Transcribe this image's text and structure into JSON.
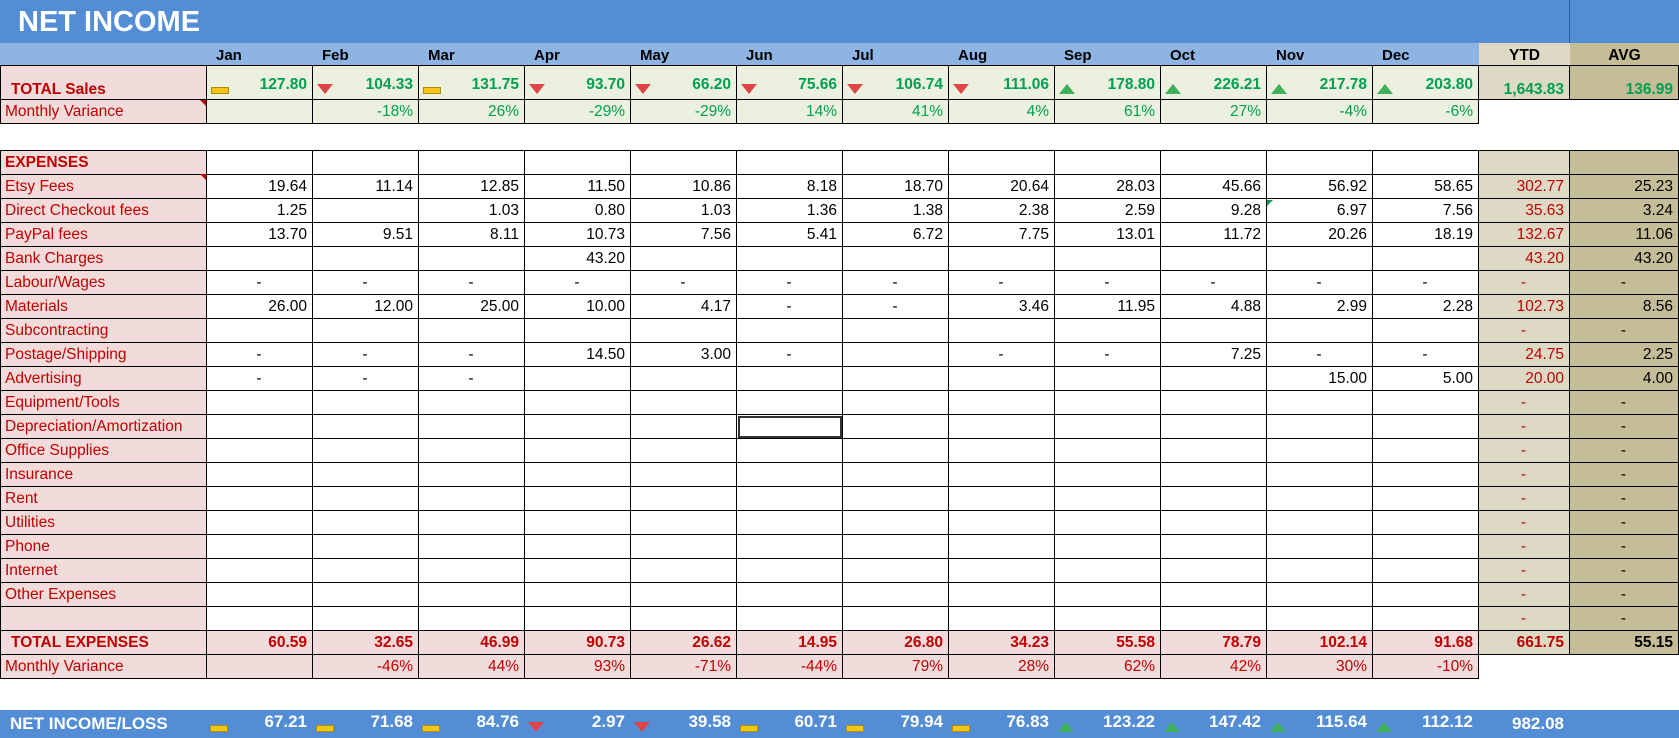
{
  "title": "NET INCOME",
  "months": [
    "Jan",
    "Feb",
    "Mar",
    "Apr",
    "May",
    "Jun",
    "Jul",
    "Aug",
    "Sep",
    "Oct",
    "Nov",
    "Dec"
  ],
  "ytd_label": "YTD",
  "avg_label": "AVG",
  "sales": {
    "label": "TOTAL  Sales",
    "values": [
      "127.80",
      "104.33",
      "131.75",
      "93.70",
      "66.20",
      "75.66",
      "106.74",
      "111.06",
      "178.80",
      "226.21",
      "217.78",
      "203.80"
    ],
    "trend_icons": [
      "flat",
      "down",
      "flat",
      "down",
      "down",
      "down",
      "down",
      "down",
      "up",
      "up",
      "up",
      "up"
    ],
    "ytd": "1,643.83",
    "avg": "136.99"
  },
  "sales_variance": {
    "label": "Monthly Variance",
    "values": [
      "",
      "-18%",
      "26%",
      "-29%",
      "-29%",
      "14%",
      "41%",
      "4%",
      "61%",
      "27%",
      "-4%",
      "-6%"
    ]
  },
  "expenses_header": "EXPENSES",
  "expenses": [
    {
      "label": "Etsy Fees",
      "values": [
        "19.64",
        "11.14",
        "12.85",
        "11.50",
        "10.86",
        "8.18",
        "18.70",
        "20.64",
        "28.03",
        "45.66",
        "56.92",
        "58.65"
      ],
      "ytd": "302.77",
      "avg": "25.23"
    },
    {
      "label": "Direct Checkout fees",
      "values": [
        "1.25",
        "",
        "1.03",
        "0.80",
        "1.03",
        "1.36",
        "1.38",
        "2.38",
        "2.59",
        "9.28",
        "6.97",
        "7.56"
      ],
      "ytd": "35.63",
      "avg": "3.24"
    },
    {
      "label": "PayPal fees",
      "values": [
        "13.70",
        "9.51",
        "8.11",
        "10.73",
        "7.56",
        "5.41",
        "6.72",
        "7.75",
        "13.01",
        "11.72",
        "20.26",
        "18.19"
      ],
      "ytd": "132.67",
      "avg": "11.06"
    },
    {
      "label": "Bank Charges",
      "values": [
        "",
        "",
        "",
        "43.20",
        "",
        "",
        "",
        "",
        "",
        "",
        "",
        ""
      ],
      "ytd": "43.20",
      "avg": "43.20"
    },
    {
      "label": "Labour/Wages",
      "values": [
        "-",
        "-",
        "-",
        "-",
        "-",
        "-",
        "-",
        "-",
        "-",
        "-",
        "-",
        "-"
      ],
      "ytd": "-",
      "avg": "-"
    },
    {
      "label": "Materials",
      "values": [
        "26.00",
        "12.00",
        "25.00",
        "10.00",
        "4.17",
        "-",
        "-",
        "3.46",
        "11.95",
        "4.88",
        "2.99",
        "2.28"
      ],
      "ytd": "102.73",
      "avg": "8.56"
    },
    {
      "label": "Subcontracting",
      "values": [
        "",
        "",
        "",
        "",
        "",
        "",
        "",
        "",
        "",
        "",
        "",
        ""
      ],
      "ytd": "-",
      "avg": "-"
    },
    {
      "label": "Postage/Shipping",
      "values": [
        "-",
        "-",
        "-",
        "14.50",
        "3.00",
        "-",
        "",
        "-",
        "-",
        "7.25",
        "-",
        "-"
      ],
      "ytd": "24.75",
      "avg": "2.25"
    },
    {
      "label": "Advertising",
      "values": [
        "-",
        "-",
        "-",
        "",
        "",
        "",
        "",
        "",
        "",
        "",
        "15.00",
        "5.00"
      ],
      "ytd": "20.00",
      "avg": "4.00"
    },
    {
      "label": "Equipment/Tools",
      "values": [
        "",
        "",
        "",
        "",
        "",
        "",
        "",
        "",
        "",
        "",
        "",
        ""
      ],
      "ytd": "-",
      "avg": "-"
    },
    {
      "label": "Depreciation/Amortization",
      "values": [
        "",
        "",
        "",
        "",
        "",
        "",
        "",
        "",
        "",
        "",
        "",
        ""
      ],
      "ytd": "-",
      "avg": "-"
    },
    {
      "label": "Office Supplies",
      "values": [
        "",
        "",
        "",
        "",
        "",
        "",
        "",
        "",
        "",
        "",
        "",
        ""
      ],
      "ytd": "-",
      "avg": "-"
    },
    {
      "label": "Insurance",
      "values": [
        "",
        "",
        "",
        "",
        "",
        "",
        "",
        "",
        "",
        "",
        "",
        ""
      ],
      "ytd": "-",
      "avg": "-"
    },
    {
      "label": "Rent",
      "values": [
        "",
        "",
        "",
        "",
        "",
        "",
        "",
        "",
        "",
        "",
        "",
        ""
      ],
      "ytd": "-",
      "avg": "-"
    },
    {
      "label": "Utilities",
      "values": [
        "",
        "",
        "",
        "",
        "",
        "",
        "",
        "",
        "",
        "",
        "",
        ""
      ],
      "ytd": "-",
      "avg": "-"
    },
    {
      "label": "Phone",
      "values": [
        "",
        "",
        "",
        "",
        "",
        "",
        "",
        "",
        "",
        "",
        "",
        ""
      ],
      "ytd": "-",
      "avg": "-"
    },
    {
      "label": "Internet",
      "values": [
        "",
        "",
        "",
        "",
        "",
        "",
        "",
        "",
        "",
        "",
        "",
        ""
      ],
      "ytd": "-",
      "avg": "-"
    },
    {
      "label": "Other Expenses",
      "values": [
        "",
        "",
        "",
        "",
        "",
        "",
        "",
        "",
        "",
        "",
        "",
        ""
      ],
      "ytd": "-",
      "avg": "-"
    },
    {
      "label": "",
      "values": [
        "",
        "",
        "",
        "",
        "",
        "",
        "",
        "",
        "",
        "",
        "",
        ""
      ],
      "ytd": "-",
      "avg": "-"
    }
  ],
  "total_expenses": {
    "label": "TOTAL EXPENSES",
    "values": [
      "60.59",
      "32.65",
      "46.99",
      "90.73",
      "26.62",
      "14.95",
      "26.80",
      "34.23",
      "55.58",
      "78.79",
      "102.14",
      "91.68"
    ],
    "ytd": "661.75",
    "avg": "55.15"
  },
  "expenses_variance": {
    "label": "Monthly Variance",
    "values": [
      "",
      "-46%",
      "44%",
      "93%",
      "-71%",
      "-44%",
      "79%",
      "28%",
      "62%",
      "42%",
      "30%",
      "-10%"
    ]
  },
  "net_income": {
    "label": "NET INCOME/LOSS",
    "values": [
      "67.21",
      "71.68",
      "84.76",
      "2.97",
      "39.58",
      "60.71",
      "79.94",
      "76.83",
      "123.22",
      "147.42",
      "115.64",
      "112.12"
    ],
    "trend_icons": [
      "flat",
      "flat",
      "flat",
      "down",
      "down",
      "flat",
      "flat",
      "flat",
      "up",
      "up",
      "up",
      "up"
    ],
    "ytd": "982.08"
  },
  "colors": {
    "title_bar": "#538dd5",
    "month_header": "#8db4e2",
    "sales_text": "#00a050",
    "expense_text": "#c00000",
    "ytd_bg": "#ddd9c4",
    "avg_bg": "#c4bd97"
  }
}
